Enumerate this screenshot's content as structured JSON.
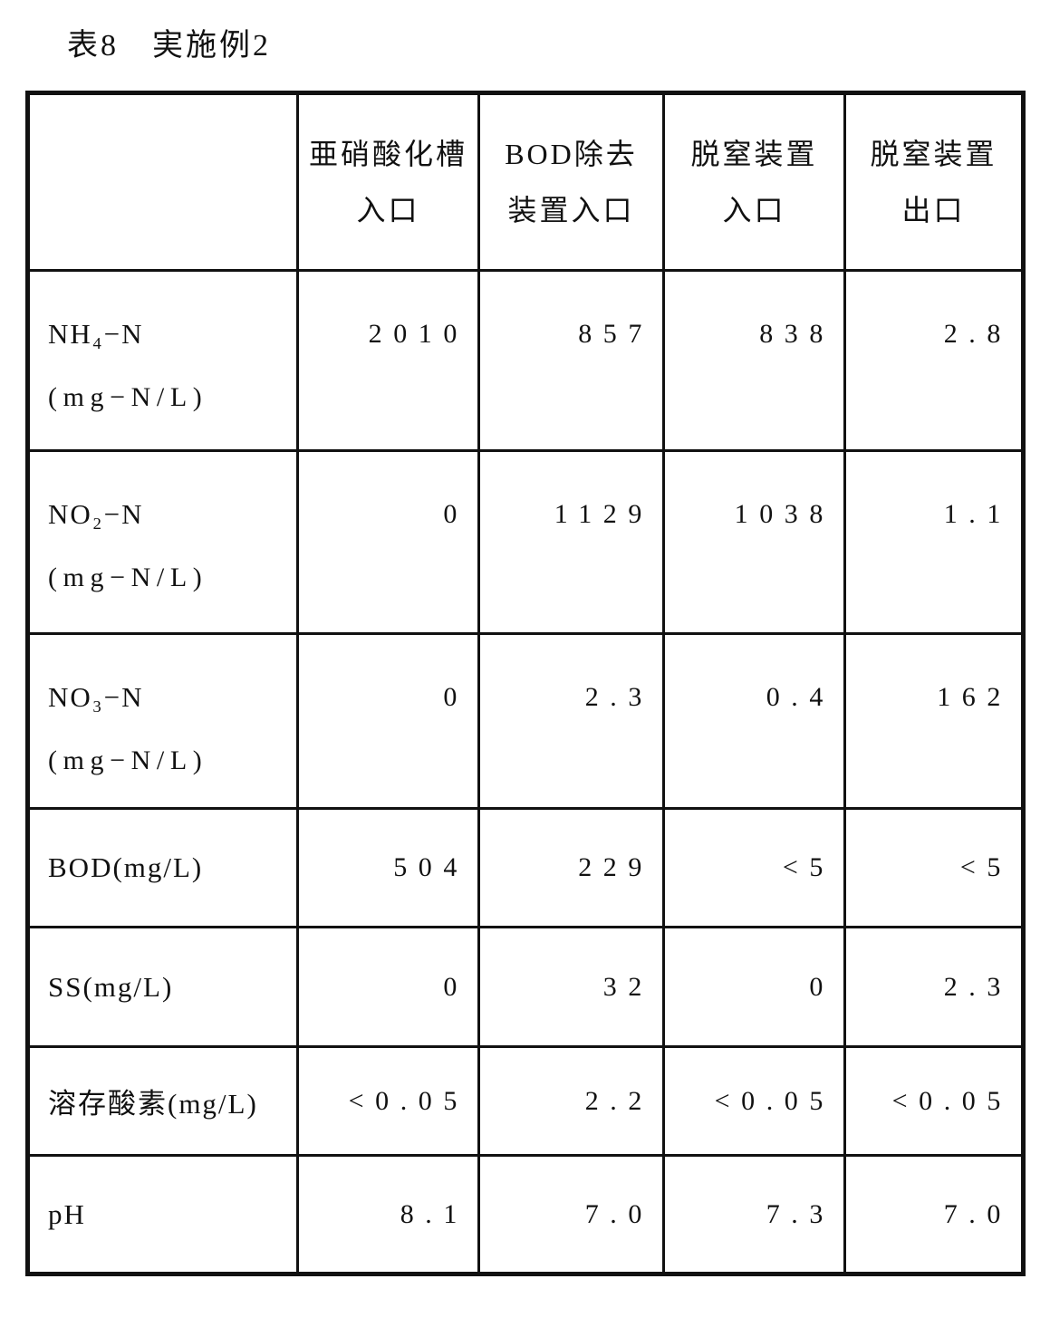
{
  "page": {
    "title": "表8　実施例2"
  },
  "colors": {
    "ink": "#111111",
    "paper": "#ffffff"
  },
  "table": {
    "columns": [
      {
        "line1": "",
        "line2": ""
      },
      {
        "line1": "亜硝酸化槽",
        "line2": "入口"
      },
      {
        "line1": "BOD除去",
        "line2": "装置入口"
      },
      {
        "line1": "脱窒装置",
        "line2": "入口"
      },
      {
        "line1": "脱窒装置",
        "line2": "出口"
      }
    ],
    "rows": [
      {
        "label": "NH₄−N",
        "unit": "(mg−N/L)",
        "values": [
          "2010",
          "857",
          "838",
          "2.8"
        ]
      },
      {
        "label": "NO₂−N",
        "unit": "(mg−N/L)",
        "values": [
          "0",
          "1129",
          "1038",
          "1.1"
        ]
      },
      {
        "label": "NO₃−N",
        "unit": "(mg−N/L)",
        "values": [
          "0",
          "2.3",
          "0.4",
          "162"
        ]
      },
      {
        "label": "BOD(mg/L)",
        "unit": "",
        "values": [
          "504",
          "229",
          "<5",
          "<5"
        ]
      },
      {
        "label": "SS(mg/L)",
        "unit": "",
        "values": [
          "0",
          "32",
          "0",
          "2.3"
        ]
      },
      {
        "label": "溶存酸素(mg/L)",
        "unit": "",
        "values": [
          "<0.05",
          "2.2",
          "<0.05",
          "<0.05"
        ]
      },
      {
        "label": "pH",
        "unit": "",
        "values": [
          "8.1",
          "7.0",
          "7.3",
          "7.0"
        ]
      }
    ]
  }
}
